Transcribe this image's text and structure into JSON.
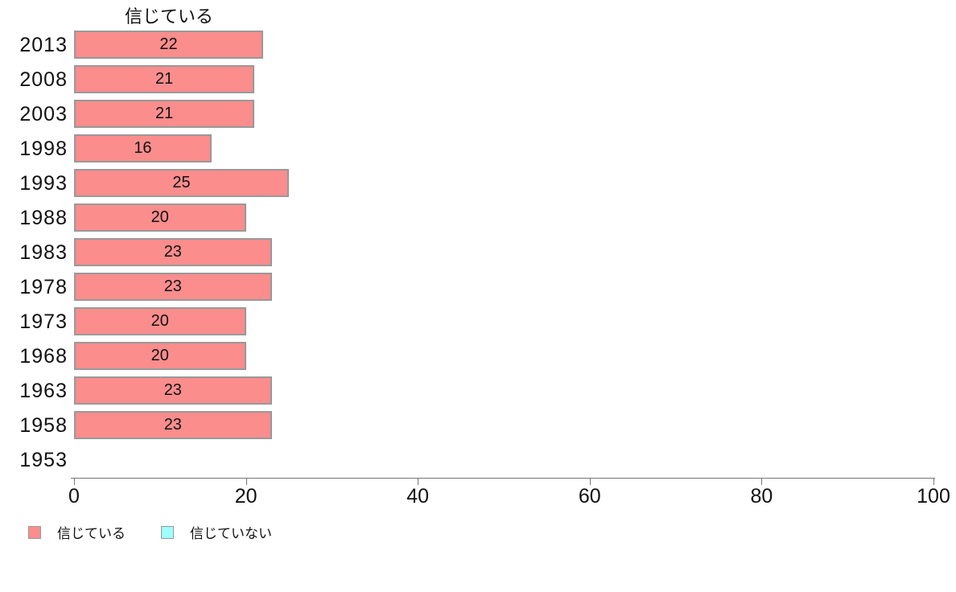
{
  "chart_data": {
    "type": "bar",
    "orientation": "horizontal",
    "title": "信じている",
    "categories": [
      "2013",
      "2008",
      "2003",
      "1998",
      "1993",
      "1988",
      "1983",
      "1978",
      "1973",
      "1968",
      "1963",
      "1958",
      "1953"
    ],
    "series": [
      {
        "name": "信じている",
        "color": "#FB8D8D",
        "border_color": "#999999",
        "values": [
          22,
          21,
          21,
          16,
          25,
          20,
          23,
          23,
          20,
          20,
          23,
          23,
          null
        ]
      }
    ],
    "legend": {
      "position": "bottom-left",
      "entries": [
        {
          "label": "信じている",
          "color": "#FB8D8D"
        },
        {
          "label": "信じていない",
          "color": "#A0FFFF"
        }
      ]
    },
    "xlabel": "",
    "ylabel": "",
    "xlim": [
      0,
      100
    ],
    "xticks": [
      0,
      20,
      40,
      60,
      80,
      100
    ],
    "grid": false,
    "bar_value_labels": true,
    "axis_color": "#777777",
    "text_color": "#111111"
  }
}
